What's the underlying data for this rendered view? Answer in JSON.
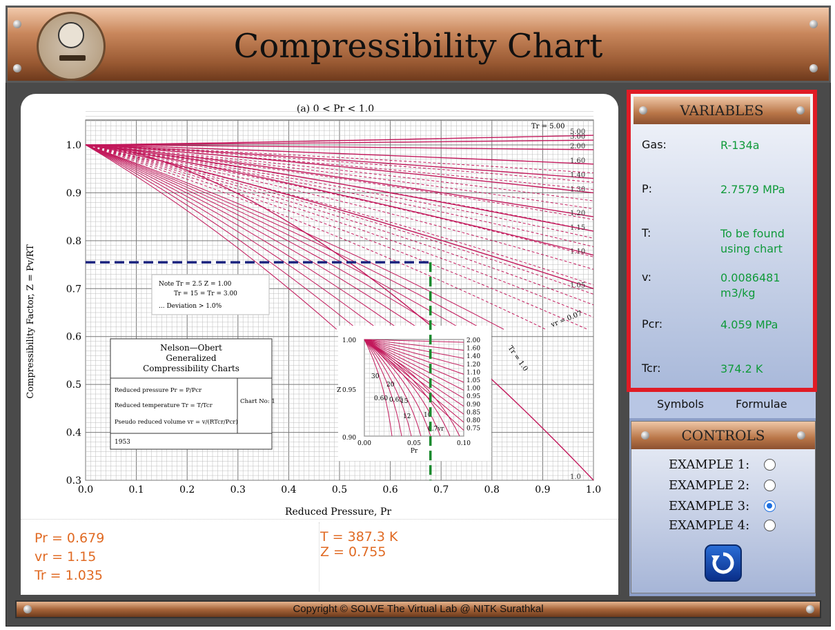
{
  "header": {
    "title": "Compressibility Chart"
  },
  "chart": {
    "title": "(a) 0 < Pr < 1.0",
    "ylabel": "Compressibility Factor, Z = Pv/RT",
    "xlabel": "Reduced Pressure, Pr",
    "note_lines": [
      "Note   Tr = 2.5   Z = 1.00",
      "Tr = 15 =  Tr = 3.00",
      "... Deviation > 1.0%"
    ],
    "legend_title_lines": [
      "Nelson—Obert",
      "Generalized",
      "Compressibility Charts"
    ],
    "legend_rows": [
      "Reduced pressure Pr = P/Pcr",
      "Reduced temperature Tr = T/Tcr",
      "Pseudo reduced volume vr = v/(RTcr/Pcr)"
    ],
    "legend_chart_no": "Chart No: 1",
    "legend_year": "1953",
    "inset_xlabel": "Pr",
    "inset_ylabel": "Z",
    "inset_x_ticks": [
      "0.00",
      "0.05",
      "0.10"
    ],
    "inset_y_ticks": [
      "0.90",
      "0.95",
      "1.00"
    ],
    "inset_right_labels": [
      "2.00",
      "1.60",
      "1.40",
      "1.20",
      "1.10",
      "1.05",
      "1.00",
      "0.95",
      "0.90",
      "0.85",
      "0.80",
      "0.75"
    ],
    "inset_curve_labels": [
      "30",
      "20",
      "0.60",
      "0.65",
      "15",
      "12",
      "10",
      "0.7",
      "vr"
    ],
    "tr_label": "Tr = 5.00",
    "vr_label": "vr = 0.07",
    "tr10_label": "Tr = 1.0"
  },
  "chart_data": {
    "type": "line",
    "title": "(a) 0 < Pr < 1.0",
    "xlabel": "Reduced Pressure, Pr",
    "ylabel": "Compressibility Factor, Z = Pv/RT",
    "xlim": [
      0,
      1.0
    ],
    "ylim": [
      0.3,
      1.0
    ],
    "x_ticks": [
      0.0,
      0.1,
      0.2,
      0.3,
      0.4,
      0.5,
      0.6,
      0.7,
      0.8,
      0.9,
      1.0
    ],
    "y_ticks": [
      0.3,
      0.4,
      0.5,
      0.6,
      0.7,
      0.8,
      0.9,
      1.0
    ],
    "grid": true,
    "tr_curves": [
      {
        "name": "5.00",
        "z_at_1": 1.02
      },
      {
        "name": "3.00",
        "z_at_1": 1.01
      },
      {
        "name": "2.00",
        "z_at_1": 0.99
      },
      {
        "name": "1.60",
        "z_at_1": 0.96
      },
      {
        "name": "1.40",
        "z_at_1": 0.93
      },
      {
        "name": "1.30",
        "z_at_1": 0.9
      },
      {
        "name": "1.20",
        "z_at_1": 0.85
      },
      {
        "name": "1.15",
        "z_at_1": 0.82
      },
      {
        "name": "1.10",
        "z_at_1": 0.77
      },
      {
        "name": "1.05",
        "z_at_1": 0.7
      },
      {
        "name": "1.0",
        "z_at_1": 0.3
      }
    ],
    "marker": {
      "pr": 0.679,
      "z": 0.755
    }
  },
  "results": {
    "pr": "Pr = 0.679",
    "vr": "vr = 1.15",
    "tr": "Tr = 1.035",
    "t": "T = 387.3 K",
    "z": "Z = 0.755"
  },
  "variables": {
    "heading": "VARIABLES",
    "rows": [
      {
        "key": "Gas:",
        "value": "R-134a"
      },
      {
        "key": "P:",
        "value": "2.7579 MPa"
      },
      {
        "key": "T:",
        "value": "To be found using chart"
      },
      {
        "key": "v:",
        "value": "0.0086481 m3/kg"
      },
      {
        "key": "Pcr:",
        "value": "4.059 MPa"
      },
      {
        "key": "Tcr:",
        "value": "374.2 K"
      }
    ]
  },
  "tabs": {
    "symbols": "Symbols",
    "formulae": "Formulae"
  },
  "controls": {
    "heading": "CONTROLS",
    "examples": [
      {
        "label": "EXAMPLE 1:",
        "selected": false
      },
      {
        "label": "EXAMPLE 2:",
        "selected": false
      },
      {
        "label": "EXAMPLE 3:",
        "selected": true
      },
      {
        "label": "EXAMPLE 4:",
        "selected": false
      }
    ],
    "reset_icon": "refresh-icon"
  },
  "footer": {
    "text": "Copyright © SOLVE The Virtual Lab @ NITK Surathkal"
  },
  "colors": {
    "curve": "#c2185b",
    "marker_h": "#1a237e",
    "marker_v": "#1b8a2e",
    "result": "#e06a23",
    "value": "#109a3a",
    "frame": "#e01b25"
  }
}
